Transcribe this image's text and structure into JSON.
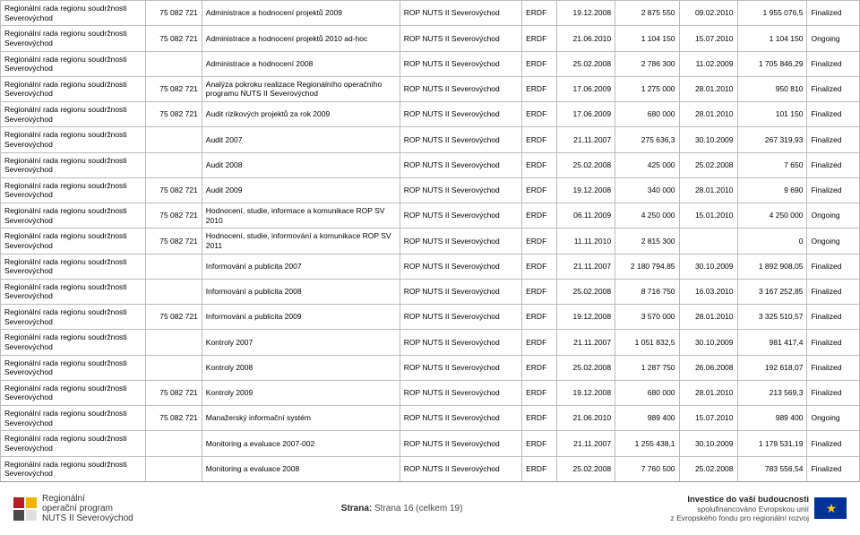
{
  "table": {
    "col_classes": [
      "c0",
      "c1",
      "c2",
      "c3",
      "c4",
      "c5",
      "c6",
      "c7",
      "c8",
      "c9"
    ],
    "rows": [
      [
        "Regionální rada regionu soudržnosti Severovýchod",
        "75 082 721",
        "Administrace a hodnocení projektů 2009",
        "ROP NUTS II Severovýchod",
        "ERDF",
        "19.12.2008",
        "2 875 550",
        "09.02.2010",
        "1 955 076,5",
        "Finalized"
      ],
      [
        "Regionální rada regionu soudržnosti Severovýchod",
        "75 082 721",
        "Administrace a hodnocení projektů 2010 ad-hoc",
        "ROP NUTS II Severovýchod",
        "ERDF",
        "21.06.2010",
        "1 104 150",
        "15.07.2010",
        "1 104 150",
        "Ongoing"
      ],
      [
        "Regionální rada regionu soudržnosti Severovýchod",
        "",
        "Administrace a hodnocení 2008",
        "ROP NUTS II Severovýchod",
        "ERDF",
        "25.02.2008",
        "2 786 300",
        "11.02.2009",
        "1 705 846,29",
        "Finalized"
      ],
      [
        "Regionální rada regionu soudržnosti Severovýchod",
        "75 082 721",
        "Analýza pokroku realizace Regionálního operačního programu NUTS II Severovýchod",
        "ROP NUTS II Severovýchod",
        "ERDF",
        "17.06.2009",
        "1 275 000",
        "28.01.2010",
        "950 810",
        "Finalized"
      ],
      [
        "Regionální rada regionu soudržnosti Severovýchod",
        "75 082 721",
        "Audit rizikových projektů za rok 2009",
        "ROP NUTS II Severovýchod",
        "ERDF",
        "17.06.2009",
        "680 000",
        "28.01.2010",
        "101 150",
        "Finalized"
      ],
      [
        "Regionální rada regionu soudržnosti Severovýchod",
        "",
        "Audit 2007",
        "ROP NUTS II Severovýchod",
        "ERDF",
        "21.11.2007",
        "275 636,3",
        "30.10.2009",
        "267 319,93",
        "Finalized"
      ],
      [
        "Regionální rada regionu soudržnosti Severovýchod",
        "",
        "Audit 2008",
        "ROP NUTS II Severovýchod",
        "ERDF",
        "25.02.2008",
        "425 000",
        "25.02.2008",
        "7 650",
        "Finalized"
      ],
      [
        "Regionální rada regionu soudržnosti Severovýchod",
        "75 082 721",
        "Audit 2009",
        "ROP NUTS II Severovýchod",
        "ERDF",
        "19.12.2008",
        "340 000",
        "28.01.2010",
        "9 690",
        "Finalized"
      ],
      [
        "Regionální rada regionu soudržnosti Severovýchod",
        "75 082 721",
        "Hodnocení, studie, informace a komunikace ROP SV 2010",
        "ROP NUTS II Severovýchod",
        "ERDF",
        "06.11.2009",
        "4 250 000",
        "15.01.2010",
        "4 250 000",
        "Ongoing"
      ],
      [
        "Regionální rada regionu soudržnosti Severovýchod",
        "75 082 721",
        "Hodnocení, studie, informování a komunikace ROP SV 2011",
        "ROP NUTS II Severovýchod",
        "ERDF",
        "11.11.2010",
        "2 815 300",
        "",
        "0",
        "Ongoing"
      ],
      [
        "Regionální rada regionu soudržnosti Severovýchod",
        "",
        "Informování a publicita 2007",
        "ROP NUTS II Severovýchod",
        "ERDF",
        "21.11.2007",
        "2 180 794,85",
        "30.10.2009",
        "1 892 908,05",
        "Finalized"
      ],
      [
        "Regionální rada regionu soudržnosti Severovýchod",
        "",
        "Informování a publicita 2008",
        "ROP NUTS II Severovýchod",
        "ERDF",
        "25.02.2008",
        "8 716 750",
        "16.03.2010",
        "3 167 252,85",
        "Finalized"
      ],
      [
        "Regionální rada regionu soudržnosti Severovýchod",
        "75 082 721",
        "Informování a publicita 2009",
        "ROP NUTS II Severovýchod",
        "ERDF",
        "19.12.2008",
        "3 570 000",
        "28.01.2010",
        "3 325 510,57",
        "Finalized"
      ],
      [
        "Regionální rada regionu soudržnosti Severovýchod",
        "",
        "Kontroly 2007",
        "ROP NUTS II Severovýchod",
        "ERDF",
        "21.11.2007",
        "1 051 832,5",
        "30.10.2009",
        "981 417,4",
        "Finalized"
      ],
      [
        "Regionální rada regionu soudržnosti Severovýchod",
        "",
        "Kontroly 2008",
        "ROP NUTS II Severovýchod",
        "ERDF",
        "25.02.2008",
        "1 287 750",
        "26.06.2008",
        "192 618,07",
        "Finalized"
      ],
      [
        "Regionální rada regionu soudržnosti Severovýchod",
        "75 082 721",
        "Kontroly 2009",
        "ROP NUTS II Severovýchod",
        "ERDF",
        "19.12.2008",
        "680 000",
        "28.01.2010",
        "213 569,3",
        "Finalized"
      ],
      [
        "Regionální rada regionu soudržnosti Severovýchod",
        "75 082 721",
        "Manažerský informační systém",
        "ROP NUTS II Severovýchod",
        "ERDF",
        "21.06.2010",
        "989 400",
        "15.07.2010",
        "989 400",
        "Ongoing"
      ],
      [
        "Regionální rada regionu soudržnosti Severovýchod",
        "",
        "Monitoring a evaluace 2007-002",
        "ROP NUTS II Severovýchod",
        "ERDF",
        "21.11.2007",
        "1 255 438,1",
        "30.10.2009",
        "1 179 531,19",
        "Finalized"
      ],
      [
        "Regionální rada regionu soudržnosti Severovýchod",
        "",
        "Monitoring a evaluace 2008",
        "ROP NUTS II Severovýchod",
        "ERDF",
        "25.02.2008",
        "7 760 500",
        "25.02.2008",
        "783 556,54",
        "Finalized"
      ]
    ]
  },
  "footer": {
    "logo_colors": {
      "tl": "#b41e22",
      "tr": "#f3b200",
      "bl": "#4a4a4a",
      "br": "#e0e0e0"
    },
    "left_line1": "Regionální",
    "left_line2": "operační program",
    "left_line3": "NUTS II Severovýchod",
    "center_label": "Strana:",
    "center_value": "Strana 16 (celkem 19)",
    "right_line1": "Investice do vaší budoucnosti",
    "right_line2": "spolufinancováno Evropskou unií",
    "right_line3": "z Evropského fondu pro regionální rozvoj"
  }
}
